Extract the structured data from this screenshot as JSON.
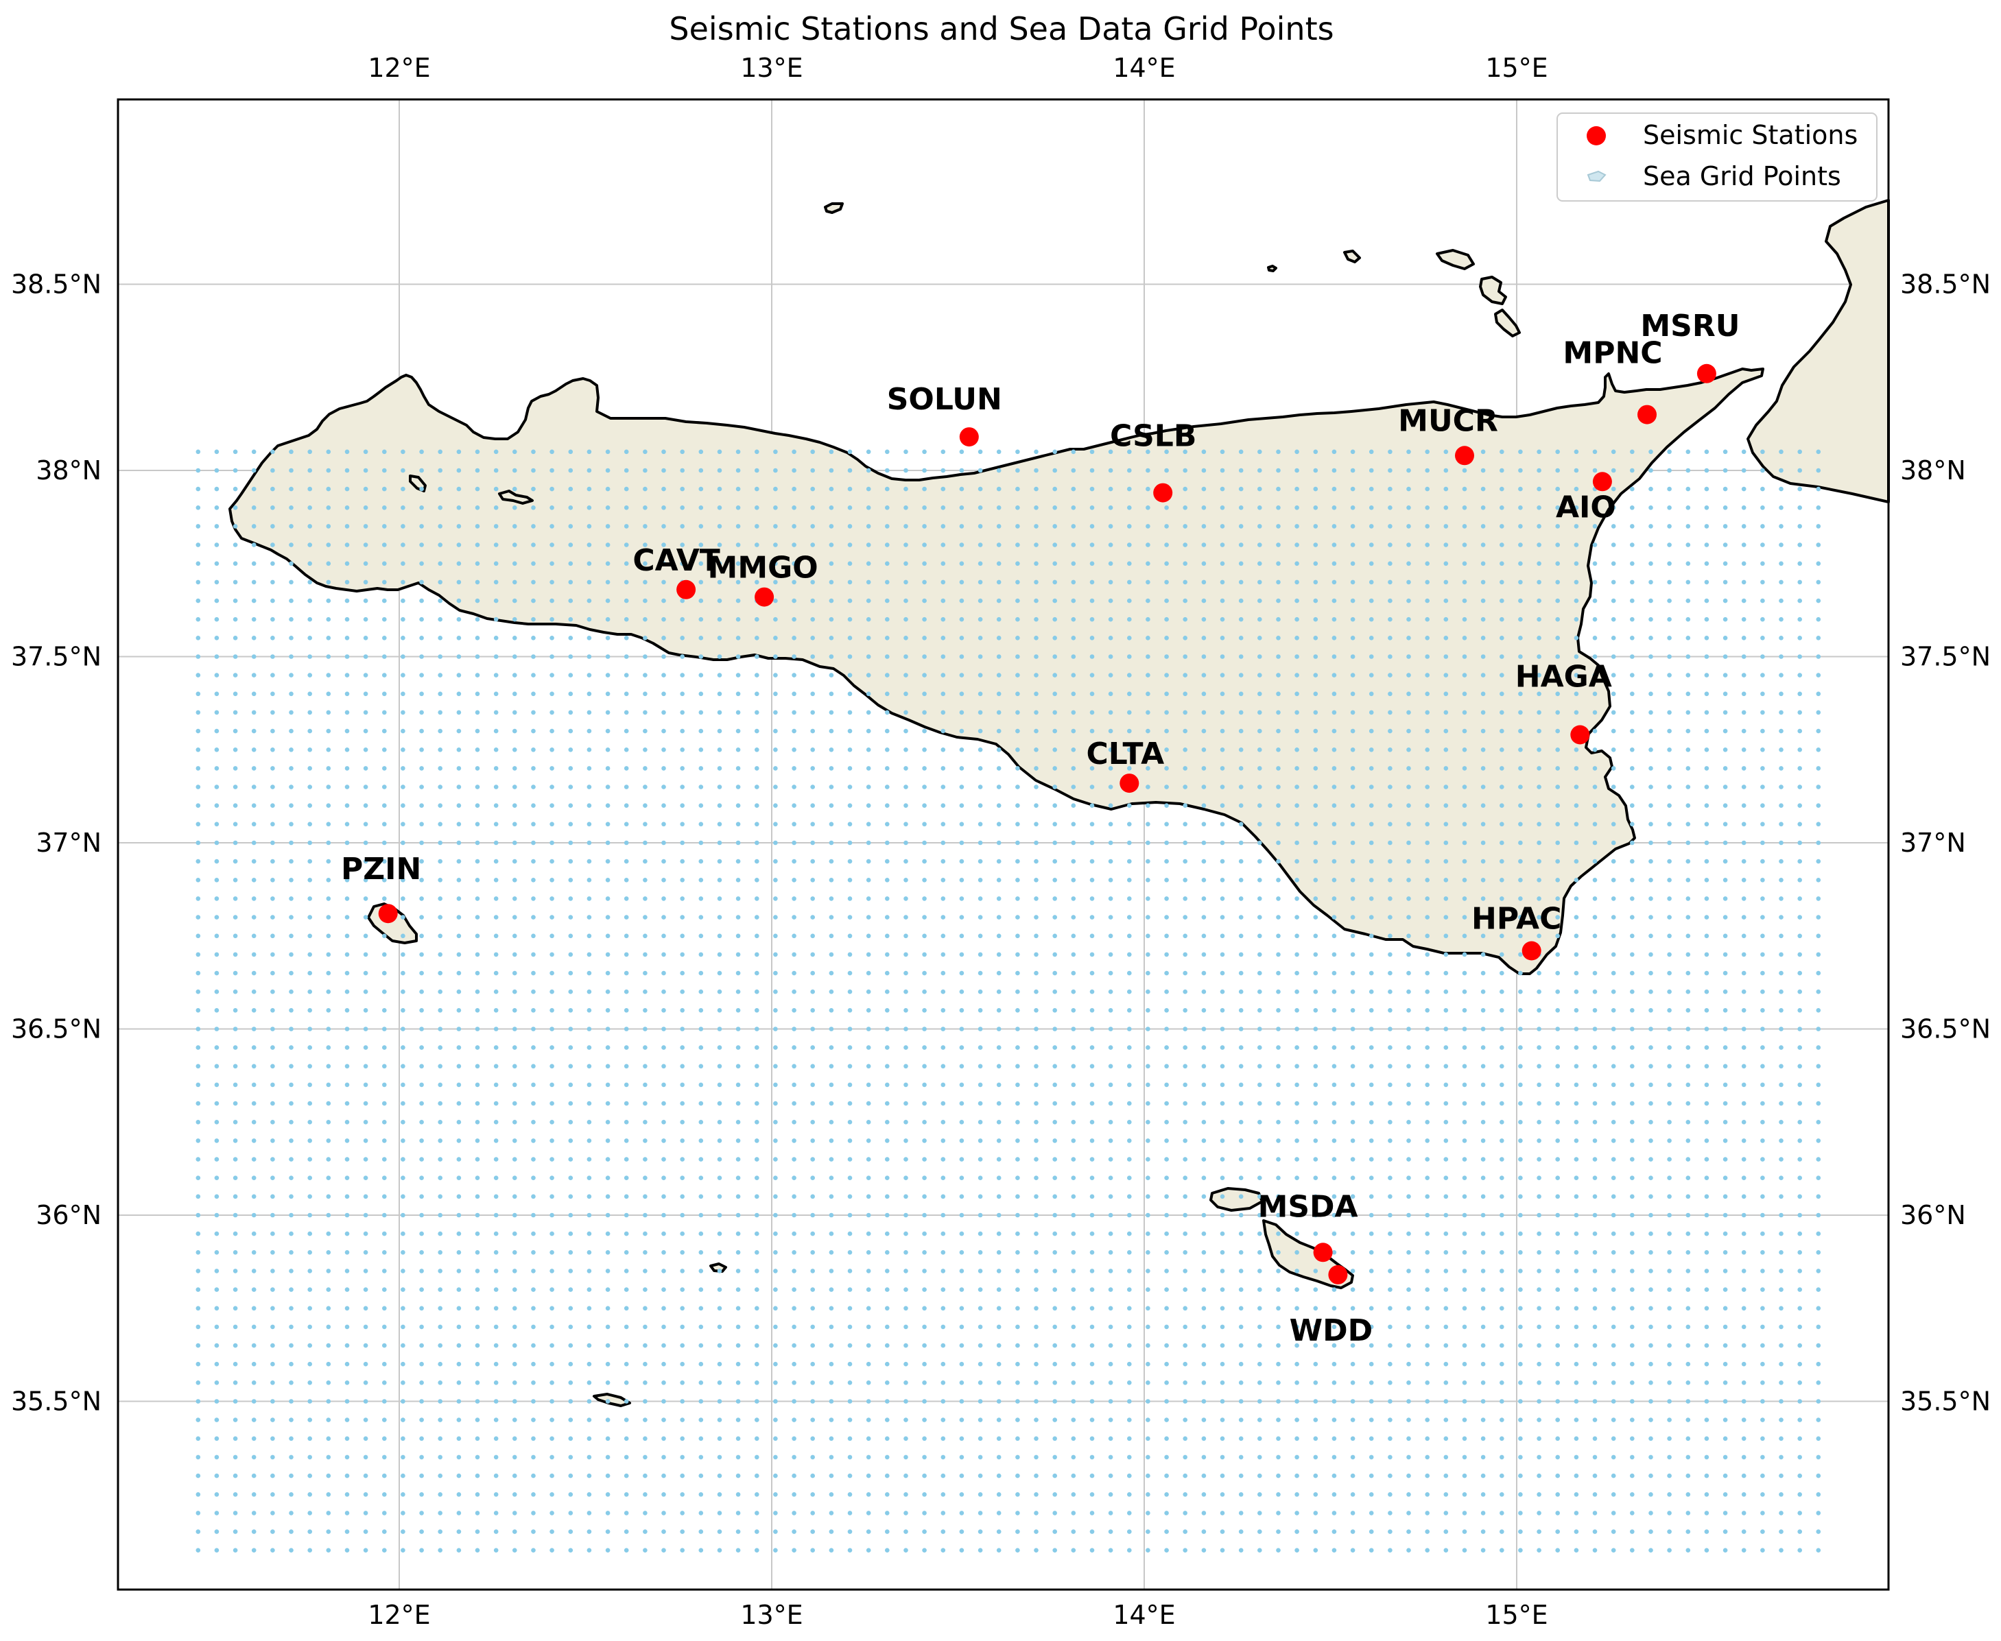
{
  "chart_data": {
    "type": "scatter",
    "title": "Seismic Stations and Sea Data Grid Points",
    "xlim": [
      11.26,
      15.98
    ],
    "ylim": [
      35.03,
      39.0
    ],
    "x_ticks": [
      {
        "value": 12,
        "label": "12°E"
      },
      {
        "value": 13,
        "label": "13°E"
      },
      {
        "value": 14,
        "label": "14°E"
      },
      {
        "value": 15,
        "label": "15°E"
      }
    ],
    "y_ticks": [
      {
        "value": 35.5,
        "label": "35.5°N"
      },
      {
        "value": 36.0,
        "label": "36°N"
      },
      {
        "value": 36.5,
        "label": "36.5°N"
      },
      {
        "value": 37.0,
        "label": "37°N"
      },
      {
        "value": 37.5,
        "label": "37.5°N"
      },
      {
        "value": 38.0,
        "label": "38°N"
      },
      {
        "value": 38.5,
        "label": "38.5°N"
      }
    ],
    "grid": true,
    "legend": {
      "placement": "top-right",
      "entries": [
        {
          "label": "Seismic Stations",
          "color": "#ff0000",
          "marker": "circle"
        },
        {
          "label": "Sea Grid Points",
          "color": "#87cbe8",
          "marker": "small-dot"
        }
      ]
    },
    "stations": [
      {
        "name": "SOLUN",
        "lon": 13.53,
        "lat": 38.09
      },
      {
        "name": "CSLB",
        "lon": 14.05,
        "lat": 37.94
      },
      {
        "name": "MUCR",
        "lon": 14.86,
        "lat": 38.04
      },
      {
        "name": "MPNC",
        "lon": 15.35,
        "lat": 38.15
      },
      {
        "name": "MSRU",
        "lon": 15.51,
        "lat": 38.26
      },
      {
        "name": "AIO",
        "lon": 15.23,
        "lat": 37.97
      },
      {
        "name": "CAVT",
        "lon": 12.77,
        "lat": 37.68
      },
      {
        "name": "MMGO",
        "lon": 12.98,
        "lat": 37.66
      },
      {
        "name": "HAGA",
        "lon": 15.17,
        "lat": 37.29
      },
      {
        "name": "CLTA",
        "lon": 13.96,
        "lat": 37.16
      },
      {
        "name": "PZIN",
        "lon": 11.97,
        "lat": 36.81
      },
      {
        "name": "HPAC",
        "lon": 15.04,
        "lat": 36.71
      },
      {
        "name": "MSDA",
        "lon": 14.48,
        "lat": 35.9
      },
      {
        "name": "WDD",
        "lon": 14.52,
        "lat": 35.84
      }
    ],
    "sea_grid": {
      "lon_range": [
        11.46,
        15.83
      ],
      "lat_range": [
        35.1,
        38.07
      ],
      "step": 0.05,
      "color": "#87cbe8"
    }
  }
}
